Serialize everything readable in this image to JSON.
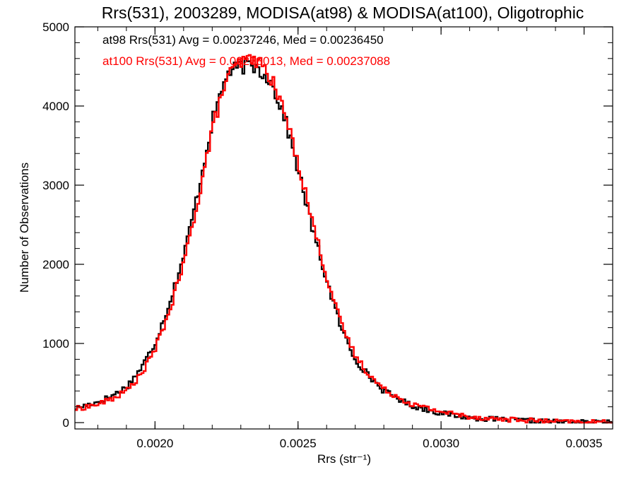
{
  "chart_data": {
    "type": "histogram-step",
    "title": "Rrs(531), 2003289, MODISA(at98) & MODISA(at100), Oligotrophic",
    "xlabel": "Rrs (str⁻¹)",
    "ylabel": "Number of Observations",
    "xlim": [
      0.00172,
      0.0036
    ],
    "ylim": [
      -80,
      5000
    ],
    "xticks": [
      0.002,
      0.0025,
      0.003,
      0.0035
    ],
    "xtick_labels": [
      "0.0020",
      "0.0025",
      "0.0030",
      "0.0035"
    ],
    "yticks": [
      0,
      1000,
      2000,
      3000,
      4000,
      5000
    ],
    "ytick_labels": [
      "0",
      "1000",
      "2000",
      "3000",
      "4000",
      "5000"
    ],
    "grid": false,
    "legend_placement": "top-left",
    "series": [
      {
        "legend_text": "at98 Rrs(531) Avg = 0.00237246, Med = 0.00236450",
        "color": "#000000",
        "bin_width": 7.5e-06,
        "peak_noise": 60,
        "points": [
          [
            0.00172,
            180
          ],
          [
            0.0018,
            260
          ],
          [
            0.00185,
            340
          ],
          [
            0.0019,
            450
          ],
          [
            0.00195,
            680
          ],
          [
            0.002,
            1000
          ],
          [
            0.00205,
            1500
          ],
          [
            0.0021,
            2100
          ],
          [
            0.00215,
            2900
          ],
          [
            0.0022,
            3800
          ],
          [
            0.00225,
            4400
          ],
          [
            0.0023,
            4500
          ],
          [
            0.00235,
            4500
          ],
          [
            0.0024,
            4350
          ],
          [
            0.00245,
            3900
          ],
          [
            0.0025,
            3200
          ],
          [
            0.00255,
            2450
          ],
          [
            0.0026,
            1800
          ],
          [
            0.00265,
            1200
          ],
          [
            0.0027,
            800
          ],
          [
            0.00275,
            580
          ],
          [
            0.0028,
            400
          ],
          [
            0.0029,
            210
          ],
          [
            0.003,
            120
          ],
          [
            0.0031,
            60
          ],
          [
            0.0032,
            40
          ],
          [
            0.0033,
            25
          ],
          [
            0.0034,
            10
          ],
          [
            0.0035,
            5
          ],
          [
            0.0036,
            0
          ]
        ]
      },
      {
        "legend_text": "at100 Rrs(531) Avg = 0.00238013, Med = 0.00237088",
        "color": "#ff0000",
        "bin_width": 7.5e-06,
        "peak_noise": 60,
        "points": [
          [
            0.00172,
            170
          ],
          [
            0.0018,
            230
          ],
          [
            0.00185,
            300
          ],
          [
            0.0019,
            400
          ],
          [
            0.00195,
            600
          ],
          [
            0.002,
            920
          ],
          [
            0.00205,
            1400
          ],
          [
            0.0021,
            2000
          ],
          [
            0.00215,
            2800
          ],
          [
            0.0022,
            3700
          ],
          [
            0.00225,
            4350
          ],
          [
            0.0023,
            4550
          ],
          [
            0.00235,
            4600
          ],
          [
            0.0024,
            4400
          ],
          [
            0.00245,
            3950
          ],
          [
            0.0025,
            3300
          ],
          [
            0.00255,
            2550
          ],
          [
            0.0026,
            1850
          ],
          [
            0.00265,
            1250
          ],
          [
            0.0027,
            850
          ],
          [
            0.00275,
            600
          ],
          [
            0.0028,
            420
          ],
          [
            0.0029,
            230
          ],
          [
            0.003,
            140
          ],
          [
            0.0031,
            75
          ],
          [
            0.0032,
            45
          ],
          [
            0.0033,
            30
          ],
          [
            0.0034,
            12
          ],
          [
            0.0035,
            6
          ],
          [
            0.0036,
            0
          ]
        ]
      }
    ]
  }
}
